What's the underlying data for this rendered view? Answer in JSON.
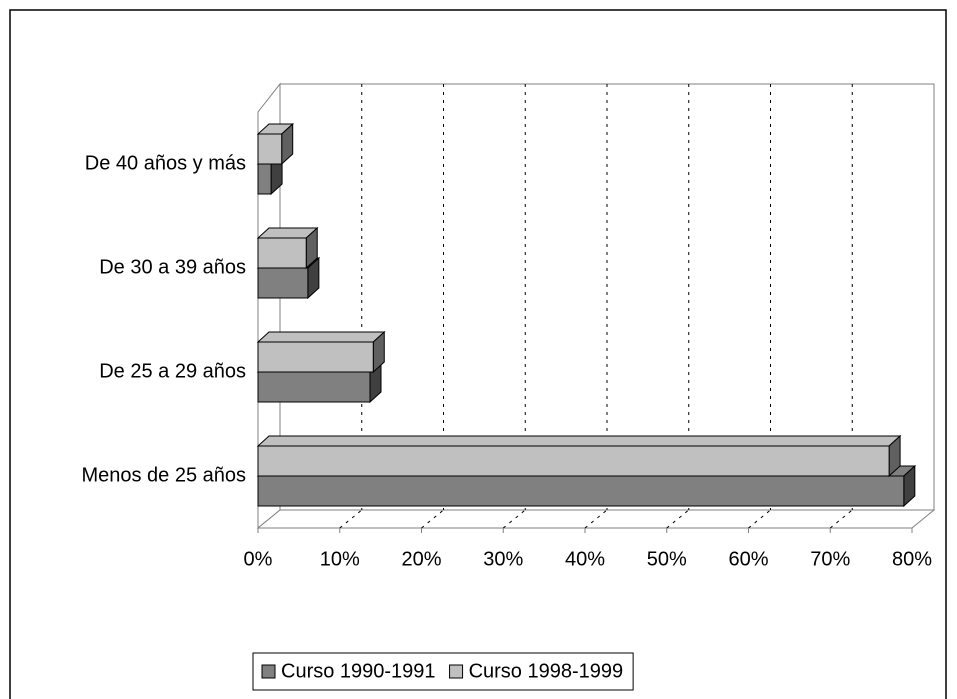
{
  "chart_data": {
    "type": "bar",
    "orientation": "horizontal",
    "categories": [
      "Menos de 25 años",
      "De 25 a 29 años",
      "De 30 a 39 años",
      "De 40 años y más"
    ],
    "series": [
      {
        "name": "Curso 1990-1991",
        "color": "#808080",
        "values": [
          79,
          13.7,
          6.1,
          1.6
        ]
      },
      {
        "name": "Curso 1998-1999",
        "color": "#c0c0c0",
        "values": [
          77.2,
          14.1,
          5.9,
          2.9
        ]
      }
    ],
    "xlim": [
      0,
      80
    ],
    "xticks": [
      {
        "value": 0,
        "label": "0%"
      },
      {
        "value": 10,
        "label": "10%"
      },
      {
        "value": 20,
        "label": "20%"
      },
      {
        "value": 30,
        "label": "30%"
      },
      {
        "value": 40,
        "label": "40%"
      },
      {
        "value": 50,
        "label": "50%"
      },
      {
        "value": 60,
        "label": "60%"
      },
      {
        "value": 70,
        "label": "70%"
      },
      {
        "value": 80,
        "label": "80%"
      }
    ],
    "grid": true,
    "legend": "bottom"
  }
}
